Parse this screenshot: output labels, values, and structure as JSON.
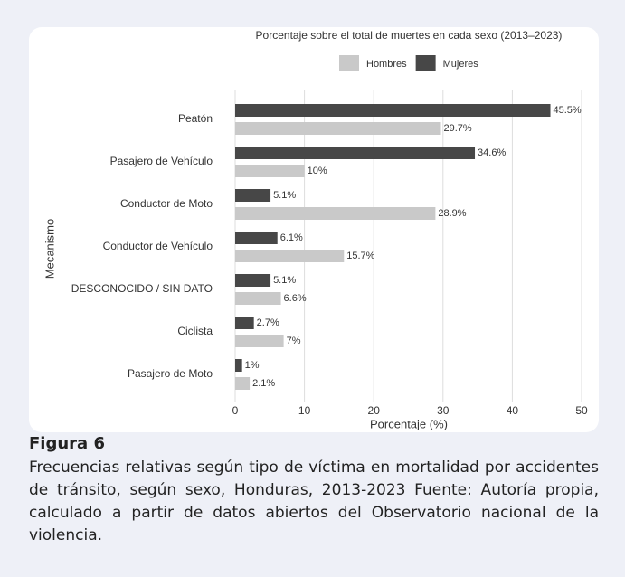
{
  "chart_data": {
    "type": "bar",
    "orientation": "horizontal",
    "title": "Porcentaje sobre el total de muertes en cada sexo (2013–2023)",
    "x_label": "Porcentaje (%)",
    "y_label": "Mecanismo",
    "categories": [
      "Peatón",
      "Pasajero de Vehículo",
      "Conductor de Moto",
      "Conductor de Vehículo",
      "DESCONOCIDO / SIN DATO",
      "Ciclista",
      "Pasajero de Moto"
    ],
    "series": [
      {
        "name": "Hombres",
        "color": "#c9c9c9",
        "values": [
          29.7,
          10,
          28.9,
          15.7,
          6.6,
          7,
          2.1
        ],
        "value_labels": [
          "29.7%",
          "10%",
          "28.9%",
          "15.7%",
          "6.6%",
          "7%",
          "2.1%"
        ]
      },
      {
        "name": "Mujeres",
        "color": "#474747",
        "values": [
          45.5,
          34.6,
          5.1,
          6.1,
          5.1,
          2.7,
          1
        ],
        "value_labels": [
          "45.5%",
          "34.6%",
          "5.1%",
          "6.1%",
          "5.1%",
          "2.7%",
          "1%"
        ]
      }
    ],
    "xlim": [
      0,
      50
    ],
    "xticks": [
      0,
      10,
      20,
      30,
      40,
      50
    ],
    "grid": true
  },
  "figure": {
    "label": "Figura 6",
    "caption": "Frecuencias relativas según tipo de víctima en mortalidad por accidentes de tránsito, según sexo, Honduras, 2013-2023  Fuente: Autoría propia, calculado a partir de datos abiertos del Observatorio nacional de la violencia."
  }
}
